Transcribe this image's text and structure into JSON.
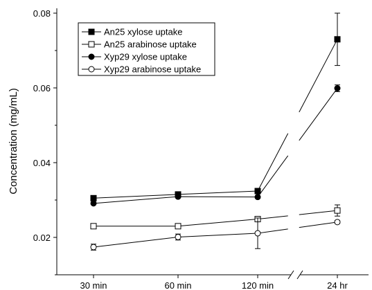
{
  "chart_data": {
    "type": "line",
    "title": "",
    "xlabel": "",
    "ylabel": "Concentration (mg/mL)",
    "categories": [
      "30 min",
      "60 min",
      "120 min",
      "24 hr"
    ],
    "axis_break": "between 120 min and 24 hr",
    "ylim": [
      0.01,
      0.08
    ],
    "yticks": [
      0.02,
      0.04,
      0.06,
      0.08
    ],
    "ytick_labels": [
      "0.02",
      "0.04",
      "0.06",
      "0.08"
    ],
    "grid": false,
    "legend_position": "top-left",
    "series": [
      {
        "name": "An25 xylose uptake",
        "marker": "filled-square",
        "color": "#000000",
        "values": [
          0.0305,
          0.0315,
          0.0324,
          0.073
        ],
        "errors": [
          0.0003,
          0.0003,
          0.0003,
          0.007
        ]
      },
      {
        "name": "An25 arabinose uptake",
        "marker": "open-square",
        "color": "#000000",
        "values": [
          0.023,
          0.023,
          0.0249,
          0.0272
        ],
        "errors": [
          0.0003,
          0.0002,
          0.0005,
          0.0015
        ]
      },
      {
        "name": "Xyp29 xylose uptake",
        "marker": "filled-circle",
        "color": "#000000",
        "values": [
          0.0291,
          0.0309,
          0.0308,
          0.0599
        ],
        "errors": [
          0.0003,
          0.0003,
          0.0003,
          0.0009
        ]
      },
      {
        "name": "Xyp29 arabinose uptake",
        "marker": "open-circle",
        "color": "#000000",
        "values": [
          0.0174,
          0.0201,
          0.0211,
          0.0241
        ],
        "errors": [
          0.0008,
          0.0008,
          0.0041,
          0.0004
        ]
      }
    ]
  }
}
